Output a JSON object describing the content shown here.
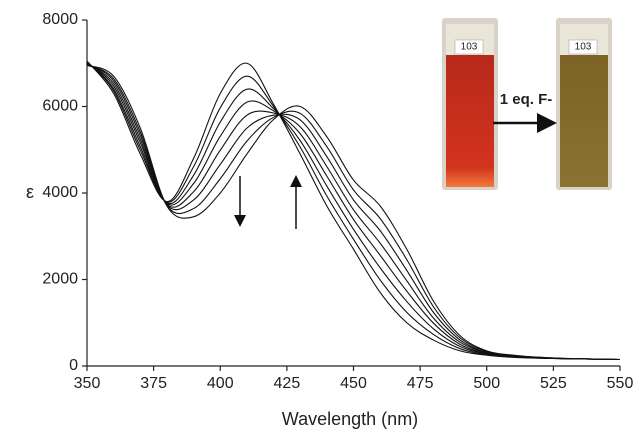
{
  "chart_data": {
    "type": "line",
    "xlabel": "Wavelength (nm)",
    "ylabel": "ε",
    "annotation": "1 eq. F-",
    "cuvette_labels": [
      "103",
      "103"
    ],
    "x": [
      350,
      360,
      370,
      380,
      390,
      400,
      410,
      420,
      430,
      440,
      450,
      460,
      470,
      480,
      490,
      500,
      510,
      520,
      530,
      540,
      550
    ],
    "series": [
      {
        "color": "#111111",
        "values": [
          7050,
          6300,
          4900,
          3800,
          4800,
          6300,
          7000,
          6050,
          4900,
          3700,
          2700,
          1700,
          1000,
          600,
          350,
          250,
          200,
          180,
          170,
          160,
          150
        ]
      },
      {
        "color": "#111111",
        "values": [
          7040,
          6360,
          4990,
          3790,
          4610,
          5970,
          6700,
          6000,
          5060,
          3930,
          2930,
          1990,
          1240,
          730,
          400,
          260,
          210,
          180,
          170,
          160,
          150
        ]
      },
      {
        "color": "#111111",
        "values": [
          7020,
          6410,
          5070,
          3770,
          4410,
          5640,
          6400,
          5950,
          5210,
          4160,
          3160,
          2270,
          1490,
          860,
          450,
          280,
          210,
          190,
          170,
          160,
          150
        ]
      },
      {
        "color": "#111111",
        "values": [
          7010,
          6470,
          5160,
          3760,
          4220,
          5310,
          6100,
          5900,
          5370,
          4390,
          3390,
          2560,
          1730,
          990,
          500,
          290,
          220,
          190,
          170,
          160,
          150
        ]
      },
      {
        "color": "#111111",
        "values": [
          6990,
          6530,
          5240,
          3740,
          4030,
          4990,
          5800,
          5850,
          5530,
          4610,
          3610,
          2840,
          1970,
          1110,
          550,
          310,
          230,
          190,
          170,
          160,
          150
        ]
      },
      {
        "color": "#111111",
        "values": [
          6980,
          6590,
          5330,
          3730,
          3840,
          4660,
          5500,
          5800,
          5690,
          4840,
          3840,
          3130,
          2210,
          1240,
          600,
          320,
          240,
          190,
          170,
          160,
          150
        ]
      },
      {
        "color": "#111111",
        "values": [
          6960,
          6640,
          5410,
          3710,
          3640,
          4330,
          5200,
          5750,
          5840,
          5070,
          4070,
          3410,
          2460,
          1370,
          650,
          340,
          240,
          200,
          170,
          160,
          150
        ]
      },
      {
        "color": "#111111",
        "values": [
          6950,
          6700,
          5500,
          3700,
          3450,
          4000,
          4900,
          5700,
          6000,
          5300,
          4300,
          3700,
          2700,
          1500,
          700,
          350,
          250,
          200,
          175,
          160,
          150
        ]
      }
    ],
    "xlim": [
      350,
      550
    ],
    "xticks": [
      350,
      375,
      400,
      425,
      450,
      475,
      500,
      525,
      550
    ],
    "ylim": [
      0,
      8000
    ],
    "yticks": [
      0,
      2000,
      4000,
      6000,
      8000
    ],
    "grid": false
  }
}
